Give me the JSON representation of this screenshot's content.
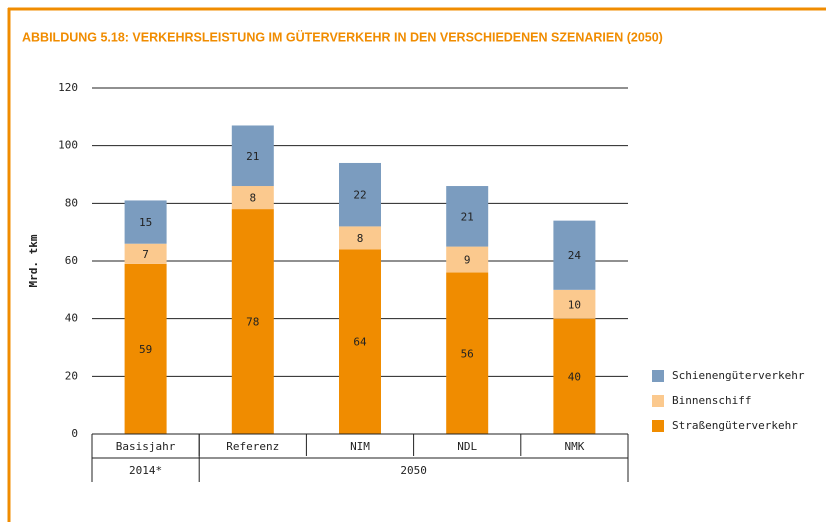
{
  "chart_data": {
    "type": "stacked_bar",
    "title": "ABBILDUNG 5.18: VERKEHRSLEISTUNG IM GÜTERVERKEHR IN DEN VERSCHIEDENEN SZENARIEN (2050)",
    "y_label": "Mrd. tkm",
    "categories": [
      "Basisjahr",
      "Referenz",
      "NIM",
      "NDL",
      "NMK"
    ],
    "groups": [
      {
        "label": "2014*",
        "count": 1
      },
      {
        "label": "2050",
        "count": 4
      }
    ],
    "series": [
      {
        "name": "Straßengüterverkehr",
        "color": "#f08c00",
        "values": [
          59,
          78,
          64,
          56,
          40
        ]
      },
      {
        "name": "Binnenschiff",
        "color": "#fbc98e",
        "values": [
          7,
          8,
          8,
          9,
          10
        ]
      },
      {
        "name": "Schienengüterverkehr",
        "color": "#7b9cbf",
        "values": [
          15,
          21,
          22,
          21,
          24
        ]
      }
    ],
    "ylim": [
      0,
      120
    ],
    "yticks": [
      0,
      20,
      40,
      60,
      80,
      100,
      120
    ],
    "grid": true,
    "legend": "right"
  }
}
